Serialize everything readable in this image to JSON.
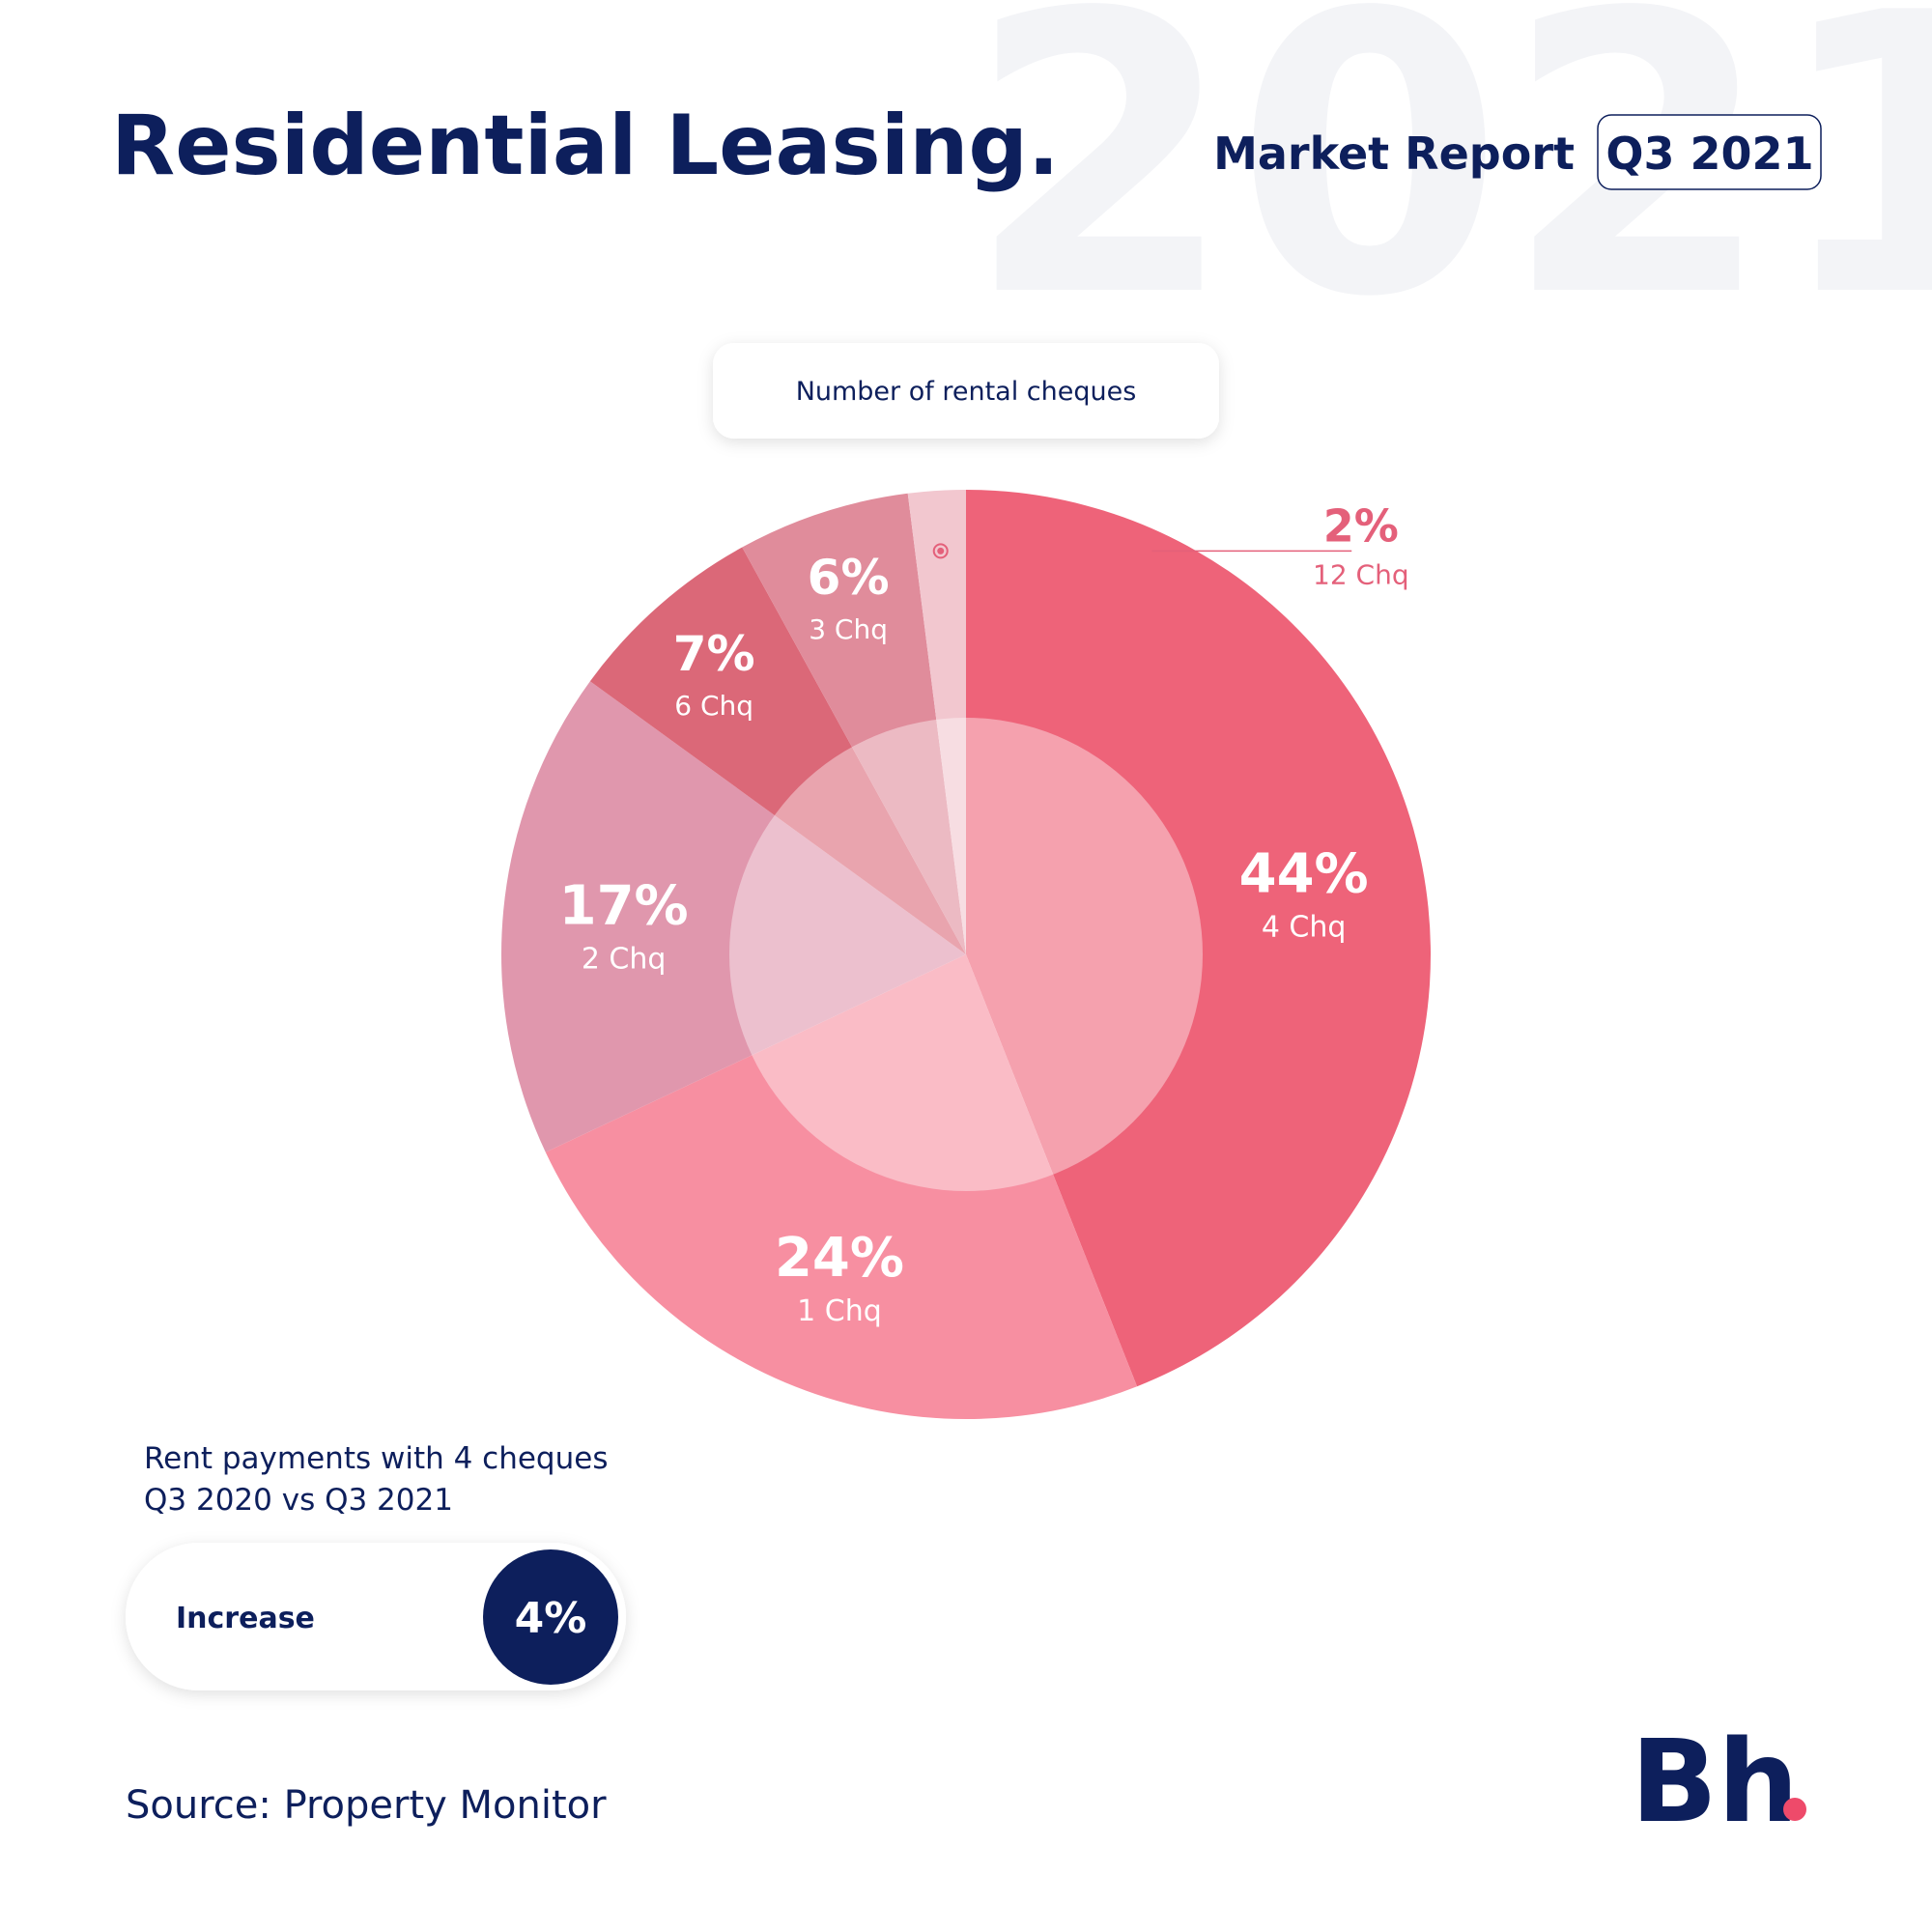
{
  "header": {
    "title": "Residential Leasing.",
    "report": "Market Report",
    "period": "Q3 2021",
    "watermark": "2021"
  },
  "chart_data": {
    "type": "pie",
    "title": "Number of rental cheques",
    "categories": [
      "4 Chq",
      "1 Chq",
      "2 Chq",
      "6 Chq",
      "3 Chq",
      "12 Chq"
    ],
    "values": [
      44,
      24,
      17,
      7,
      6,
      2
    ],
    "value_labels": [
      "44%",
      "24%",
      "17%",
      "7%",
      "6%",
      "2%"
    ],
    "colors": [
      "#ee6379",
      "#f78fa1",
      "#e097ad",
      "#db6878",
      "#e08c9b",
      "#f2c7cf"
    ]
  },
  "stat": {
    "caption": [
      "Rent payments with 4 cheques",
      "Q3 2020 vs Q3 2021"
    ],
    "label": "Increase",
    "value": "4%"
  },
  "source": "Source: Property Monitor",
  "logo": "Bh"
}
